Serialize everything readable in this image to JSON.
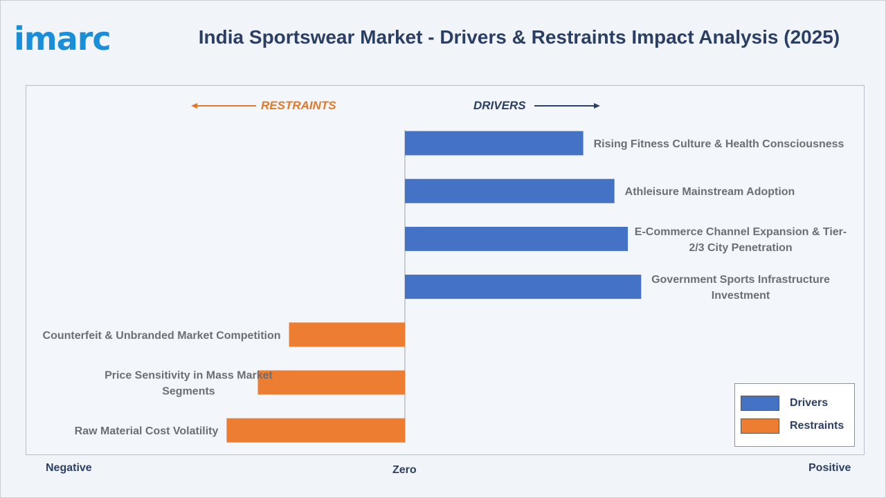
{
  "brand": {
    "logo_text": "imarc"
  },
  "title": "India Sportswear Market - Drivers & Restraints Impact Analysis (2025)",
  "directions": {
    "restraints": "RESTRAINTS",
    "drivers": "DRIVERS"
  },
  "axis_ends": {
    "negative": "Negative",
    "zero": "Zero",
    "positive": "Positive"
  },
  "colors": {
    "drivers": "#4472c4",
    "restraints": "#ed7d31",
    "title": "#2b3f64",
    "logo": "#1a8ed8"
  },
  "chart_data": {
    "type": "bar",
    "orientation": "horizontal",
    "title": "India Sportswear Market - Drivers & Restraints Impact Analysis (2025)",
    "xlim": [
      -10,
      10
    ],
    "legend_position": "bottom-right",
    "legend": [
      "Drivers",
      "Restraints"
    ],
    "categories": [
      [
        "Rising Fitness Culture & Health Consciousness"
      ],
      [
        "Athleisure Mainstream Adoption"
      ],
      [
        "E-Commerce Channel Expansion & Tier-",
        "2/3 City Penetration"
      ],
      [
        "Government Sports Infrastructure",
        "Investment"
      ],
      [
        "Counterfeit & Unbranded Market Competition"
      ],
      [
        "Price Sensitivity in Mass Market",
        "Segments"
      ],
      [
        "Raw Material Cost Volatility"
      ]
    ],
    "values": [
      4.0,
      4.7,
      5.0,
      5.3,
      -2.6,
      -3.3,
      -4.0
    ],
    "series_type": [
      "Drivers",
      "Drivers",
      "Drivers",
      "Drivers",
      "Restraints",
      "Restraints",
      "Restraints"
    ]
  }
}
